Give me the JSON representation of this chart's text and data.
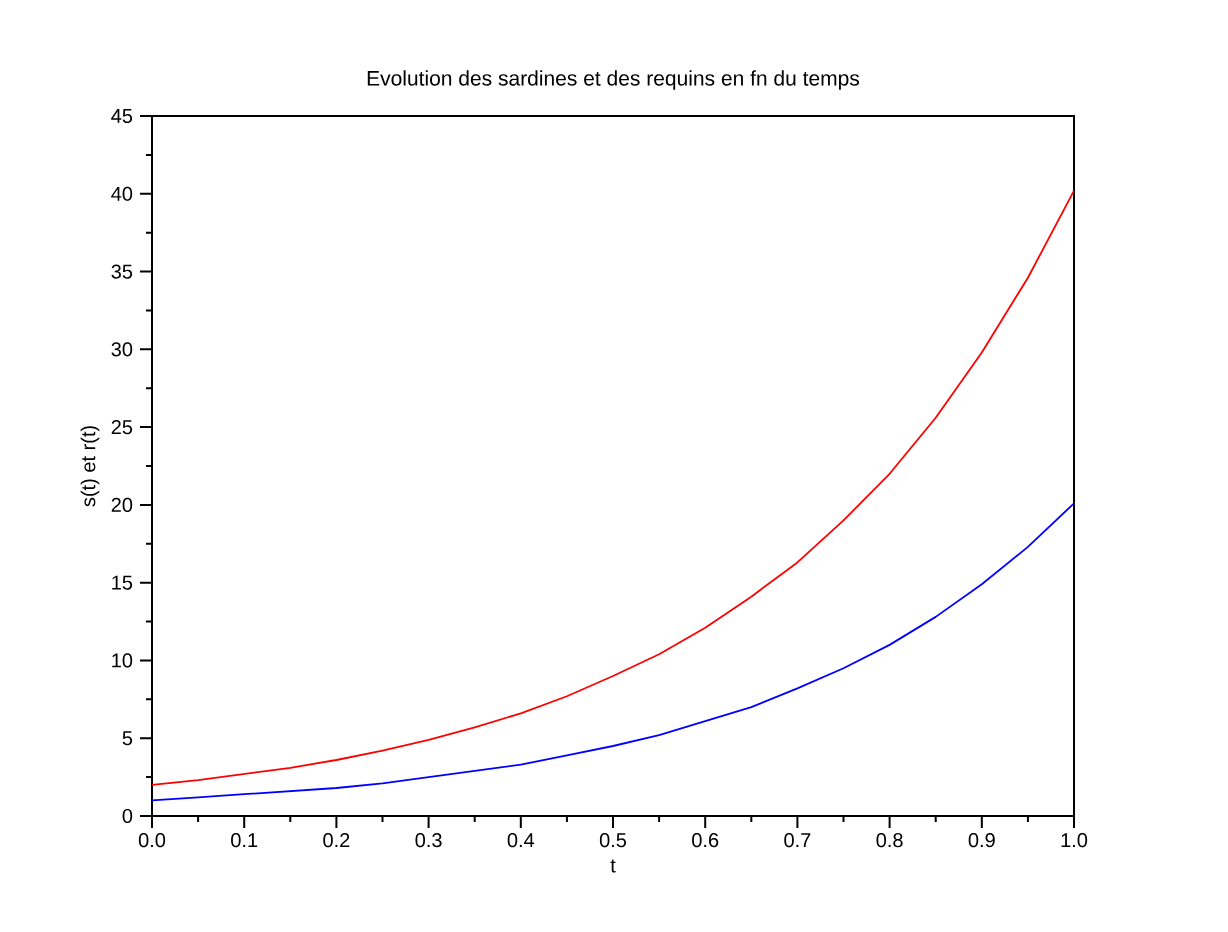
{
  "chart_data": {
    "type": "line",
    "title": "Evolution des sardines et des requins en fn du temps",
    "xlabel": "t",
    "ylabel": "s(t) et r(t)",
    "x": [
      0,
      0.05,
      0.1,
      0.15,
      0.2,
      0.25,
      0.3,
      0.35,
      0.4,
      0.45,
      0.5,
      0.55,
      0.6,
      0.65,
      0.7,
      0.75,
      0.8,
      0.85,
      0.9,
      0.95,
      1.0
    ],
    "series": [
      {
        "color": "#ff0000",
        "values": [
          2,
          2.3,
          2.7,
          3.1,
          3.6,
          4.2,
          4.9,
          5.7,
          6.6,
          7.7,
          9.0,
          10.4,
          12.1,
          14.1,
          16.3,
          19.0,
          22.0,
          25.6,
          29.8,
          34.6,
          40.2
        ]
      },
      {
        "color": "#0000ff",
        "values": [
          1,
          1.2,
          1.4,
          1.6,
          1.8,
          2.1,
          2.5,
          2.9,
          3.3,
          3.9,
          4.5,
          5.2,
          6.1,
          7.0,
          8.2,
          9.5,
          11.0,
          12.8,
          14.9,
          17.3,
          20.1
        ]
      }
    ],
    "xlim": [
      0,
      1
    ],
    "ylim": [
      0,
      45
    ],
    "xticks": [
      {
        "value": 0,
        "label": "0.0"
      },
      {
        "value": 0.05,
        "label": null
      },
      {
        "value": 0.1,
        "label": "0.1"
      },
      {
        "value": 0.15,
        "label": null
      },
      {
        "value": 0.2,
        "label": "0.2"
      },
      {
        "value": 0.25,
        "label": null
      },
      {
        "value": 0.3,
        "label": "0.3"
      },
      {
        "value": 0.35,
        "label": null
      },
      {
        "value": 0.4,
        "label": "0.4"
      },
      {
        "value": 0.45,
        "label": null
      },
      {
        "value": 0.5,
        "label": "0.5"
      },
      {
        "value": 0.55,
        "label": null
      },
      {
        "value": 0.6,
        "label": "0.6"
      },
      {
        "value": 0.65,
        "label": null
      },
      {
        "value": 0.7,
        "label": "0.7"
      },
      {
        "value": 0.75,
        "label": null
      },
      {
        "value": 0.8,
        "label": "0.8"
      },
      {
        "value": 0.85,
        "label": null
      },
      {
        "value": 0.9,
        "label": "0.9"
      },
      {
        "value": 0.95,
        "label": null
      },
      {
        "value": 1.0,
        "label": "1.0"
      }
    ],
    "yticks": [
      0,
      {
        "value": 2.5,
        "label": null
      },
      5,
      {
        "value": 7.5,
        "label": null
      },
      10,
      {
        "value": 12.5,
        "label": null
      },
      15,
      {
        "value": 17.5,
        "label": null
      },
      20,
      {
        "value": 22.5,
        "label": null
      },
      25,
      {
        "value": 27.5,
        "label": null
      },
      30,
      {
        "value": 32.5,
        "label": null
      },
      35,
      {
        "value": 37.5,
        "label": null
      },
      40,
      {
        "value": 42.5,
        "label": null
      },
      45
    ],
    "marker": "none",
    "line_style": "solid"
  }
}
